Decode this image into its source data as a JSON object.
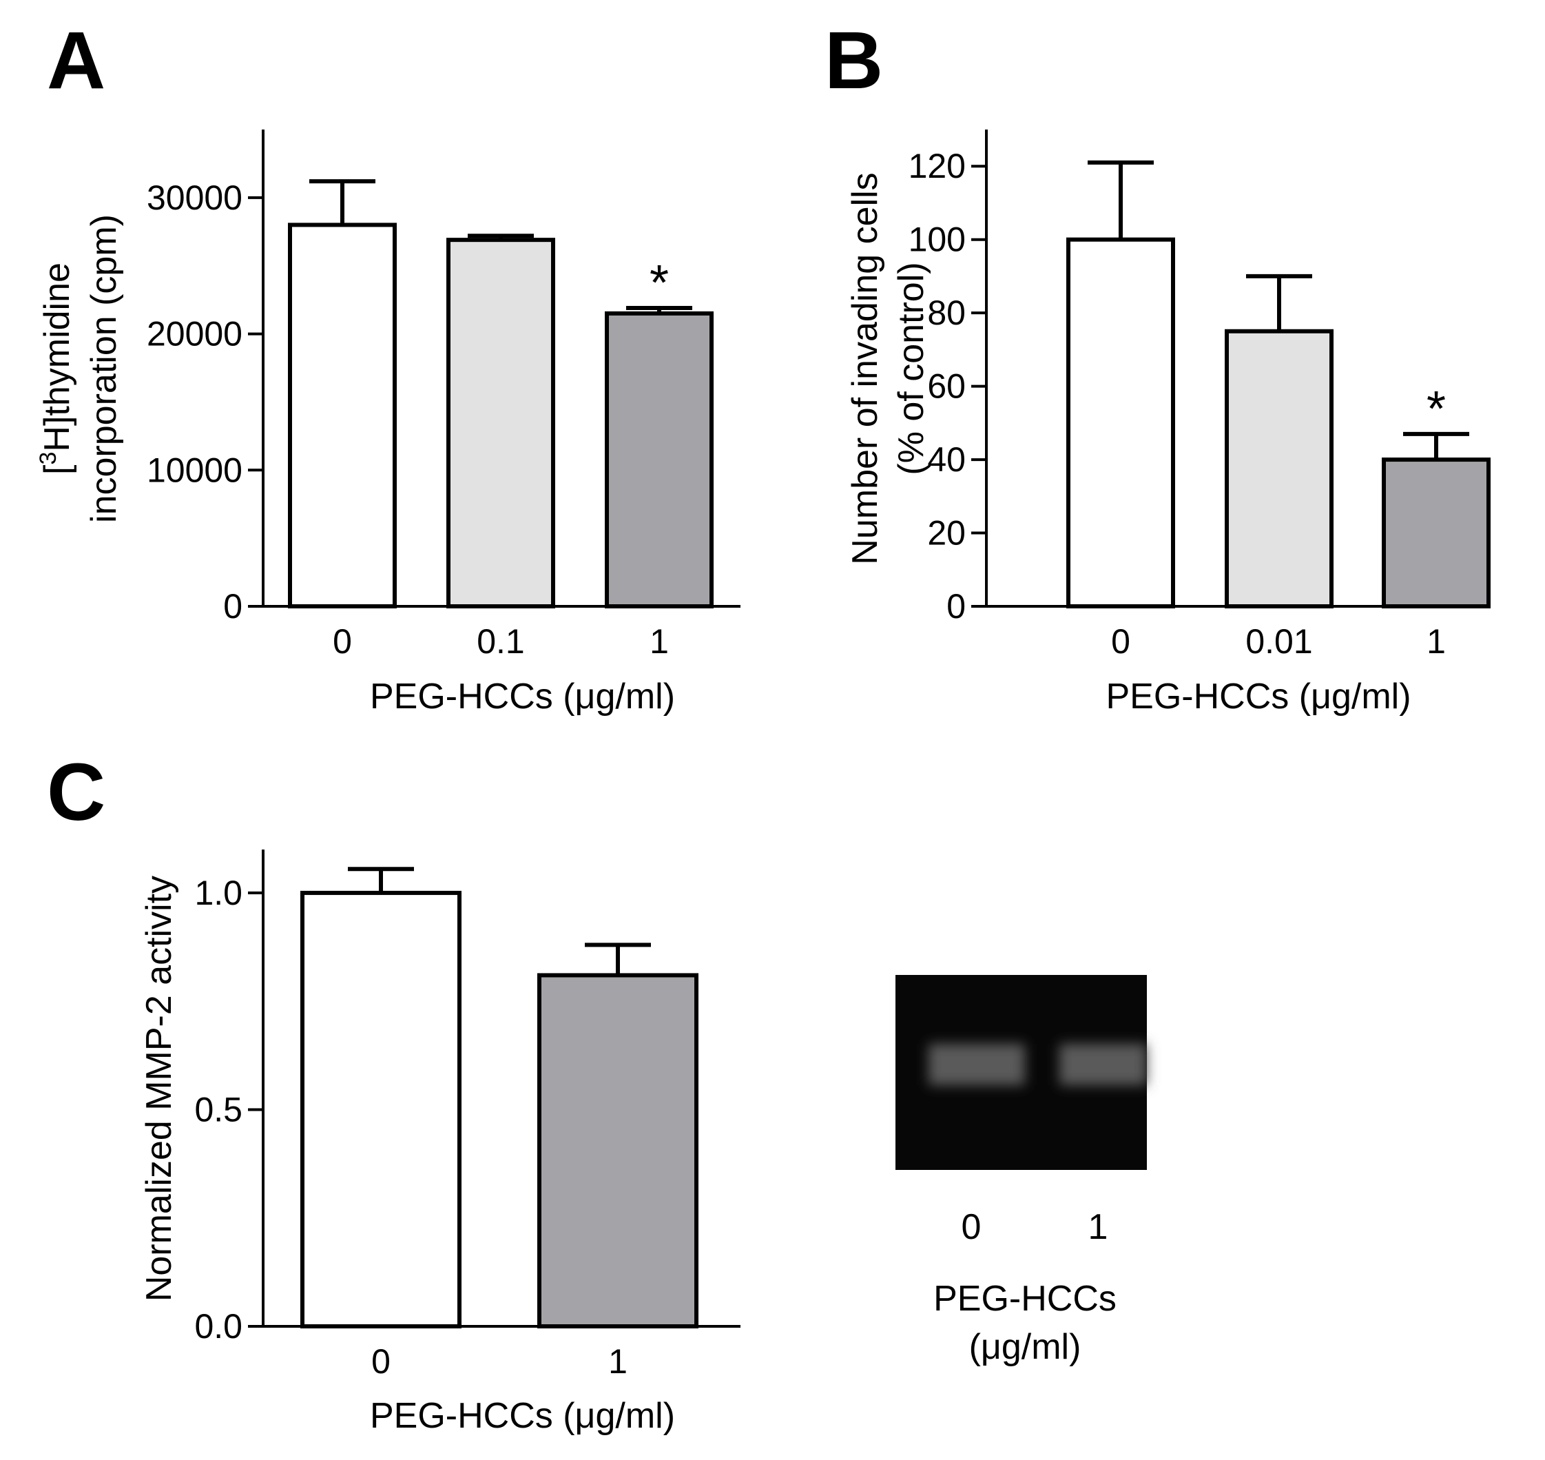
{
  "panel_labels": [
    "A",
    "B",
    "C"
  ],
  "chart_data": [
    {
      "panel": "A",
      "type": "bar",
      "categories": [
        "0",
        "0.1",
        "1"
      ],
      "values": [
        28000,
        26900,
        21500
      ],
      "errors": [
        3200,
        300,
        400
      ],
      "colors": [
        "#ffffff",
        "#e2e2e2",
        "#a4a4a8"
      ],
      "annotations": [
        "",
        "",
        "*"
      ],
      "ylabel_lines": [
        {
          "pre": "[",
          "sup": "3",
          "post": "H]thymidine"
        },
        {
          "pre": "incorporation (cpm)",
          "sup": "",
          "post": ""
        }
      ],
      "xlabel": "PEG-HCCs (μg/ml)",
      "yticks": [
        0,
        10000,
        20000,
        30000
      ],
      "ytick_labels": [
        "0",
        "10000",
        "20000",
        "30000"
      ],
      "ylim": [
        0,
        35000
      ],
      "grid": false
    },
    {
      "panel": "B",
      "type": "bar",
      "categories": [
        "0",
        "0.01",
        "1"
      ],
      "values": [
        100,
        75,
        40
      ],
      "errors": [
        21,
        15,
        7
      ],
      "colors": [
        "#ffffff",
        "#e2e2e2",
        "#a4a4a8"
      ],
      "annotations": [
        "",
        "",
        "*"
      ],
      "ylabel_lines": [
        {
          "pre": "Number of invading cells",
          "sup": "",
          "post": ""
        },
        {
          "pre": "(% of control)",
          "sup": "",
          "post": ""
        }
      ],
      "xlabel": "PEG-HCCs (μg/ml)",
      "yticks": [
        0,
        20,
        40,
        60,
        80,
        100,
        120
      ],
      "ytick_labels": [
        "0",
        "20",
        "40",
        "60",
        "80",
        "100",
        "120"
      ],
      "ylim": [
        0,
        130
      ],
      "grid": false
    },
    {
      "panel": "C",
      "type": "bar",
      "categories": [
        "0",
        "1"
      ],
      "values": [
        1.0,
        0.81
      ],
      "errors": [
        0.055,
        0.07
      ],
      "colors": [
        "#ffffff",
        "#a4a4a8"
      ],
      "annotations": [
        "",
        ""
      ],
      "ylabel_lines": [
        {
          "pre": "Normalized MMP-2 activity",
          "sup": "",
          "post": ""
        }
      ],
      "xlabel": "PEG-HCCs (μg/ml)",
      "yticks": [
        0,
        0.5,
        1.0
      ],
      "ytick_labels": [
        "0.0",
        "0.5",
        "1.0"
      ],
      "ylim": [
        0,
        1.1
      ],
      "grid": false
    }
  ],
  "gel": {
    "lane_labels": [
      "0",
      "1"
    ],
    "caption_line1": "PEG-HCCs",
    "caption_line2": "(μg/ml)",
    "background_color": "#070707",
    "band_color": "#5a5a5a"
  }
}
